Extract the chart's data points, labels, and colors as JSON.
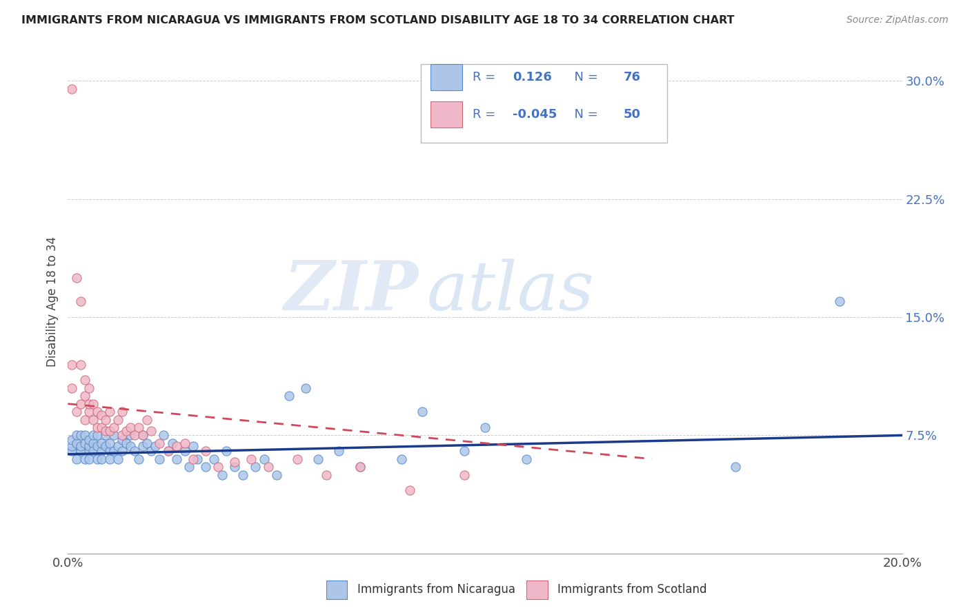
{
  "title": "IMMIGRANTS FROM NICARAGUA VS IMMIGRANTS FROM SCOTLAND DISABILITY AGE 18 TO 34 CORRELATION CHART",
  "source": "Source: ZipAtlas.com",
  "ylabel": "Disability Age 18 to 34",
  "xlim": [
    0.0,
    0.2
  ],
  "ylim": [
    0.0,
    0.32
  ],
  "xticks": [
    0.0,
    0.05,
    0.1,
    0.15,
    0.2
  ],
  "xtick_labels": [
    "0.0%",
    "",
    "",
    "",
    "20.0%"
  ],
  "yticks": [
    0.0,
    0.075,
    0.15,
    0.225,
    0.3
  ],
  "ytick_labels": [
    "",
    "7.5%",
    "15.0%",
    "22.5%",
    "30.0%"
  ],
  "nicaragua_color": "#adc6e8",
  "nicaragua_edge": "#5588cc",
  "scotland_color": "#f0b8c8",
  "scotland_edge": "#d06878",
  "nicaragua_R": 0.126,
  "nicaragua_N": 76,
  "scotland_R": -0.045,
  "scotland_N": 50,
  "nicaragua_line_color": "#1a3a8a",
  "scotland_line_color": "#d04858",
  "watermark_zip": "ZIP",
  "watermark_atlas": "atlas",
  "nicaragua_x": [
    0.001,
    0.001,
    0.001,
    0.002,
    0.002,
    0.002,
    0.003,
    0.003,
    0.003,
    0.004,
    0.004,
    0.004,
    0.005,
    0.005,
    0.005,
    0.005,
    0.006,
    0.006,
    0.006,
    0.007,
    0.007,
    0.007,
    0.008,
    0.008,
    0.008,
    0.009,
    0.009,
    0.01,
    0.01,
    0.01,
    0.011,
    0.011,
    0.012,
    0.012,
    0.013,
    0.013,
    0.014,
    0.015,
    0.015,
    0.016,
    0.017,
    0.018,
    0.018,
    0.019,
    0.02,
    0.021,
    0.022,
    0.023,
    0.024,
    0.025,
    0.026,
    0.028,
    0.029,
    0.03,
    0.031,
    0.033,
    0.035,
    0.037,
    0.038,
    0.04,
    0.042,
    0.045,
    0.047,
    0.05,
    0.053,
    0.057,
    0.06,
    0.065,
    0.07,
    0.08,
    0.085,
    0.095,
    0.1,
    0.11,
    0.16,
    0.185
  ],
  "nicaragua_y": [
    0.065,
    0.068,
    0.072,
    0.06,
    0.07,
    0.075,
    0.065,
    0.068,
    0.075,
    0.06,
    0.07,
    0.075,
    0.065,
    0.068,
    0.06,
    0.072,
    0.07,
    0.075,
    0.065,
    0.06,
    0.068,
    0.075,
    0.065,
    0.07,
    0.06,
    0.075,
    0.068,
    0.065,
    0.07,
    0.06,
    0.075,
    0.065,
    0.068,
    0.06,
    0.072,
    0.065,
    0.07,
    0.068,
    0.075,
    0.065,
    0.06,
    0.068,
    0.075,
    0.07,
    0.065,
    0.068,
    0.06,
    0.075,
    0.065,
    0.07,
    0.06,
    0.065,
    0.055,
    0.068,
    0.06,
    0.055,
    0.06,
    0.05,
    0.065,
    0.055,
    0.05,
    0.055,
    0.06,
    0.05,
    0.1,
    0.105,
    0.06,
    0.065,
    0.055,
    0.06,
    0.09,
    0.065,
    0.08,
    0.06,
    0.055,
    0.16
  ],
  "scotland_x": [
    0.001,
    0.001,
    0.001,
    0.002,
    0.002,
    0.003,
    0.003,
    0.003,
    0.004,
    0.004,
    0.004,
    0.005,
    0.005,
    0.005,
    0.006,
    0.006,
    0.007,
    0.007,
    0.008,
    0.008,
    0.009,
    0.009,
    0.01,
    0.01,
    0.011,
    0.012,
    0.013,
    0.013,
    0.014,
    0.015,
    0.016,
    0.017,
    0.018,
    0.019,
    0.02,
    0.022,
    0.024,
    0.026,
    0.028,
    0.03,
    0.033,
    0.036,
    0.04,
    0.044,
    0.048,
    0.055,
    0.062,
    0.07,
    0.082,
    0.095
  ],
  "scotland_y": [
    0.295,
    0.12,
    0.105,
    0.175,
    0.09,
    0.12,
    0.095,
    0.16,
    0.1,
    0.11,
    0.085,
    0.09,
    0.095,
    0.105,
    0.085,
    0.095,
    0.08,
    0.09,
    0.08,
    0.088,
    0.078,
    0.085,
    0.078,
    0.09,
    0.08,
    0.085,
    0.075,
    0.09,
    0.078,
    0.08,
    0.075,
    0.08,
    0.075,
    0.085,
    0.078,
    0.07,
    0.065,
    0.068,
    0.07,
    0.06,
    0.065,
    0.055,
    0.058,
    0.06,
    0.055,
    0.06,
    0.05,
    0.055,
    0.04,
    0.05
  ]
}
